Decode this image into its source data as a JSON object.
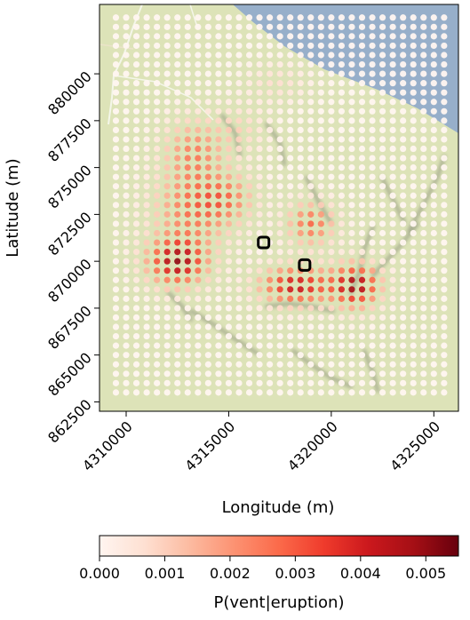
{
  "chart_data": {
    "type": "heatmap",
    "xlabel": "Longitude (m)",
    "ylabel": "Latitude (m)",
    "xlim": [
      4308700,
      4326200
    ],
    "ylim": [
      862000,
      883700
    ],
    "xticks": [
      4310000,
      4315000,
      4320000,
      4325000
    ],
    "xtick_labels": [
      "4310000",
      "4315000",
      "4320000",
      "4325000"
    ],
    "yticks": [
      862500,
      865000,
      867500,
      870000,
      872500,
      875000,
      877500,
      880000
    ],
    "ytick_labels": [
      "862500",
      "865000",
      "867500",
      "870000",
      "872500",
      "875000",
      "877500",
      "880000"
    ],
    "grid_x_start": 4309500,
    "grid_x_step": 500,
    "grid_x_count": 33,
    "grid_y_start": 863000,
    "grid_y_step": 500,
    "grid_y_count": 41,
    "hotspots": [
      {
        "x": 4312500,
        "y": 870000,
        "sx": 1000,
        "sy": 900,
        "amp": 0.0048
      },
      {
        "x": 4313300,
        "y": 872800,
        "sx": 1300,
        "sy": 1300,
        "amp": 0.0026
      },
      {
        "x": 4313300,
        "y": 875800,
        "sx": 1000,
        "sy": 1200,
        "amp": 0.0023
      },
      {
        "x": 4315000,
        "y": 873400,
        "sx": 900,
        "sy": 900,
        "amp": 0.0018
      },
      {
        "x": 4318300,
        "y": 868700,
        "sx": 1200,
        "sy": 700,
        "amp": 0.0043
      },
      {
        "x": 4321200,
        "y": 868700,
        "sx": 800,
        "sy": 800,
        "amp": 0.0047
      },
      {
        "x": 4319000,
        "y": 872000,
        "sx": 800,
        "sy": 800,
        "amp": 0.0028
      },
      {
        "x": 4317300,
        "y": 879500,
        "sx": 1000,
        "sy": 700,
        "amp": 0.0007
      },
      {
        "x": 4315500,
        "y": 877000,
        "sx": 900,
        "sy": 900,
        "amp": 0.0009
      }
    ],
    "vents": [
      {
        "x": 4316700,
        "y": 871000
      },
      {
        "x": 4318700,
        "y": 869800
      }
    ],
    "colorbar": {
      "label": "P(vent|eruption)",
      "min": 0.0,
      "max": 0.0055,
      "ticks": [
        0.0,
        0.001,
        0.002,
        0.003,
        0.004,
        0.005
      ],
      "tick_labels": [
        "0.000",
        "0.001",
        "0.002",
        "0.003",
        "0.004",
        "0.005"
      ]
    },
    "grid": false
  },
  "colors": {
    "land": "#dde3b8",
    "sea": "#97afca",
    "terrain_shadow": "#7d8270",
    "dot_low": "#fff5f0",
    "dot_mid": "#fb6a4a",
    "dot_high": "#67000d",
    "vent_marker": "#000000"
  }
}
